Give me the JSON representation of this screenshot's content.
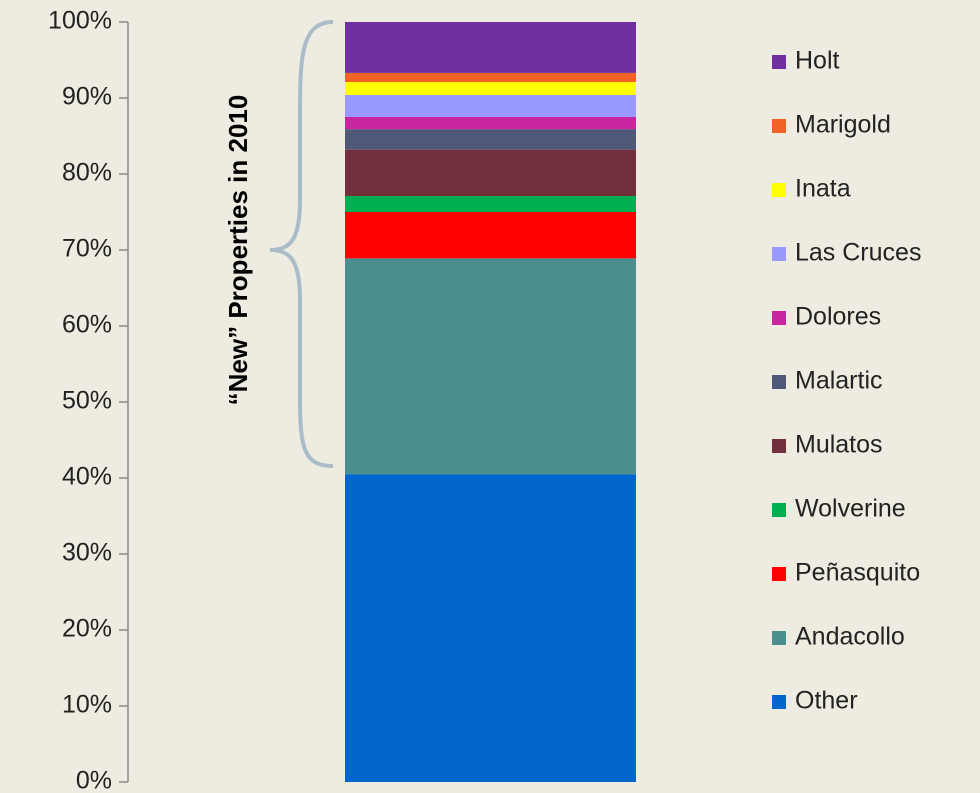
{
  "chart_data": {
    "type": "stacked_bar",
    "annotation": "“New” Properties in 2010",
    "series": [
      {
        "name": "Other",
        "color": "#0066cc",
        "values": [
          40.5
        ]
      },
      {
        "name": "Andacollo",
        "color": "#4a8e8e",
        "values": [
          28.4
        ]
      },
      {
        "name": "Peñasquito",
        "color": "#ff0000",
        "values": [
          6.1
        ]
      },
      {
        "name": "Wolverine",
        "color": "#00b050",
        "values": [
          2.1
        ]
      },
      {
        "name": "Mulatos",
        "color": "#72303c",
        "values": [
          6.1
        ]
      },
      {
        "name": "Malartic",
        "color": "#505878",
        "values": [
          2.7
        ]
      },
      {
        "name": "Dolores",
        "color": "#c9259f",
        "values": [
          1.6
        ]
      },
      {
        "name": "Las Cruces",
        "color": "#9999ff",
        "values": [
          2.9
        ]
      },
      {
        "name": "Inata",
        "color": "#ffff00",
        "values": [
          1.7
        ]
      },
      {
        "name": "Marigold",
        "color": "#f26125",
        "values": [
          1.2
        ]
      },
      {
        "name": "Holt",
        "color": "#7030a0",
        "values": [
          6.7
        ]
      }
    ],
    "ylim": [
      0,
      100
    ],
    "yticks": [
      {
        "value": 0,
        "label": "0%"
      },
      {
        "value": 10,
        "label": "10%"
      },
      {
        "value": 20,
        "label": "20%"
      },
      {
        "value": 30,
        "label": "30%"
      },
      {
        "value": 40,
        "label": "40%"
      },
      {
        "value": 50,
        "label": "50%"
      },
      {
        "value": 60,
        "label": "60%"
      },
      {
        "value": 70,
        "label": "70%"
      },
      {
        "value": 80,
        "label": "80%"
      },
      {
        "value": 90,
        "label": "90%"
      },
      {
        "value": 100,
        "label": "100%"
      }
    ]
  }
}
